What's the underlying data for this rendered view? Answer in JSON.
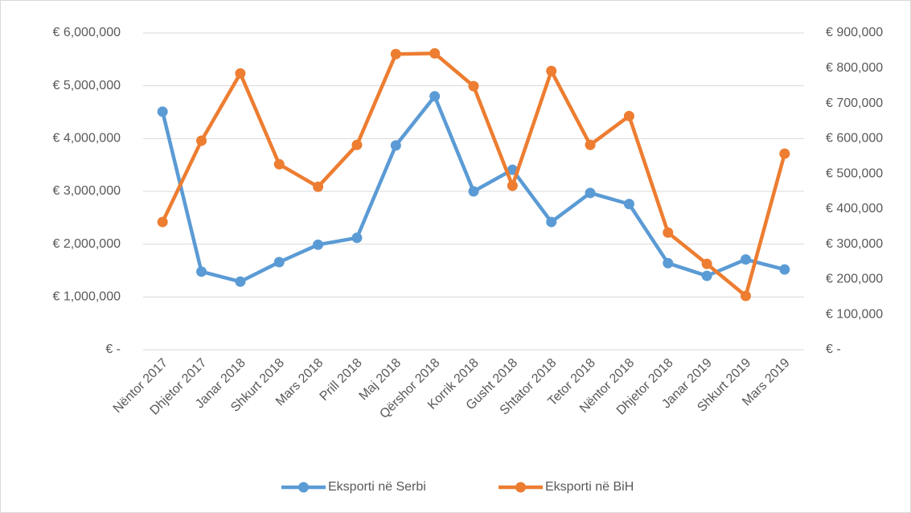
{
  "chart_data": {
    "type": "line",
    "categories": [
      "Nëntor 2017",
      "Dhjetor 2017",
      "Janar 2018",
      "Shkurt 2018",
      "Mars 2018",
      "Prill 2018",
      "Maj 2018",
      "Qërshor 2018",
      "Korrik 2018",
      "Gusht 2018",
      "Shtator 2018",
      "Tetor 2018",
      "Nëntor 2018",
      "Dhjetor 2018",
      "Janar 2019",
      "Shkurt 2019",
      "Mars 2019"
    ],
    "series": [
      {
        "name": "Eksporti në Serbi",
        "color": "#5b9bd5",
        "axis": "y",
        "values": [
          4510000,
          1480000,
          1290000,
          1660000,
          1990000,
          2120000,
          3870000,
          4800000,
          3000000,
          3410000,
          2420000,
          2970000,
          2760000,
          1640000,
          1400000,
          1710000,
          1520000
        ]
      },
      {
        "name": "Eksporti në BiH",
        "color": "#ed7d31",
        "axis": "y2",
        "values": [
          363000,
          594000,
          785000,
          527000,
          463000,
          582000,
          840000,
          842000,
          749000,
          466000,
          792000,
          582000,
          664000,
          333000,
          244000,
          153000,
          557000
        ]
      }
    ],
    "ylim": [
      0,
      6000000
    ],
    "yticks": [
      {
        "value": 0,
        "label": "€ -"
      },
      {
        "value": 1000000,
        "label": "€ 1,000,000"
      },
      {
        "value": 2000000,
        "label": "€ 2,000,000"
      },
      {
        "value": 3000000,
        "label": "€ 3,000,000"
      },
      {
        "value": 4000000,
        "label": "€ 4,000,000"
      },
      {
        "value": 5000000,
        "label": "€ 5,000,000"
      },
      {
        "value": 6000000,
        "label": "€ 6,000,000"
      }
    ],
    "y2lim": [
      0,
      900000
    ],
    "y2ticks": [
      {
        "value": 0,
        "label": "€ -"
      },
      {
        "value": 100000,
        "label": "€ 100,000"
      },
      {
        "value": 200000,
        "label": "€ 200,000"
      },
      {
        "value": 300000,
        "label": "€ 300,000"
      },
      {
        "value": 400000,
        "label": "€ 400,000"
      },
      {
        "value": 500000,
        "label": "€ 500,000"
      },
      {
        "value": 600000,
        "label": "€ 600,000"
      },
      {
        "value": 700000,
        "label": "€ 700,000"
      },
      {
        "value": 800000,
        "label": "€ 800,000"
      },
      {
        "value": 900000,
        "label": "€ 900,000"
      }
    ],
    "grid": true,
    "legend": "bottom"
  }
}
